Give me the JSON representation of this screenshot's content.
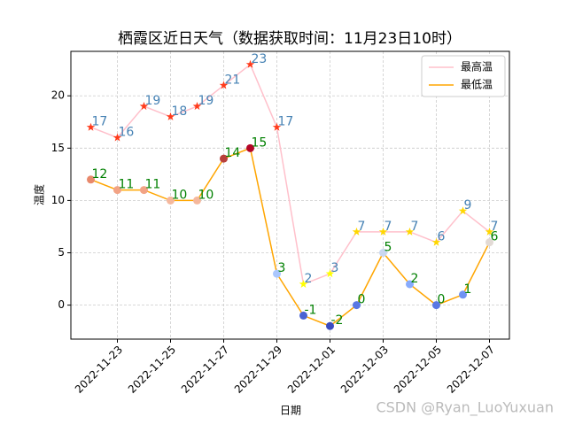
{
  "chart_data": {
    "type": "line",
    "title": "栖霞区近日天气（数据获取时间：11月23日10时）",
    "xlabel": "日期",
    "ylabel": "温度",
    "x": [
      "2022-11-22",
      "2022-11-23",
      "2022-11-24",
      "2022-11-25",
      "2022-11-26",
      "2022-11-27",
      "2022-11-28",
      "2022-11-29",
      "2022-11-30",
      "2022-12-01",
      "2022-12-02",
      "2022-12-03",
      "2022-12-04",
      "2022-12-05",
      "2022-12-06",
      "2022-12-07"
    ],
    "xticks": [
      "2022-11-23",
      "2022-11-25",
      "2022-11-27",
      "2022-11-29",
      "2022-12-01",
      "2022-12-03",
      "2022-12-05",
      "2022-12-07"
    ],
    "ylim": [
      -3.25,
      24.25
    ],
    "yticks": [
      0,
      5,
      10,
      15,
      20
    ],
    "grid": true,
    "legend": "upper right",
    "series": [
      {
        "name": "最高温",
        "color": "pink",
        "marker": "star",
        "label_color": "#4682b4",
        "values": [
          17,
          16,
          19,
          18,
          19,
          21,
          23,
          17,
          2,
          3,
          7,
          7,
          7,
          6,
          9,
          7
        ],
        "marker_colors": [
          "#ff3a1a",
          "#ff3a1a",
          "#ff3a1a",
          "#ff3a1a",
          "#ff3a1a",
          "#ff3a1a",
          "#ff3a1a",
          "#ff3a1a",
          "#ffff00",
          "#ffff00",
          "#ffd700",
          "#ffd700",
          "#ffd700",
          "#ffd700",
          "#ffd700",
          "#ffd700"
        ]
      },
      {
        "name": "最低温",
        "color": "orange",
        "marker": "circle",
        "label_color": "#008000",
        "values": [
          12,
          11,
          11,
          10,
          10,
          14,
          15,
          3,
          -1,
          -2,
          0,
          5,
          2,
          0,
          1,
          6
        ],
        "marker_colors": [
          "#e8896c",
          "#f2a385",
          "#f2a385",
          "#f5b89d",
          "#f5b89d",
          "#b9403b",
          "#b40426",
          "#aac7fd",
          "#4a63d3",
          "#3b4cc0",
          "#5a78e4",
          "#c9d7f0",
          "#88abfd",
          "#5a78e4",
          "#6f92f3",
          "#e2dad5"
        ]
      }
    ],
    "watermark": "CSDN @Ryan_LuoYuxuan"
  }
}
